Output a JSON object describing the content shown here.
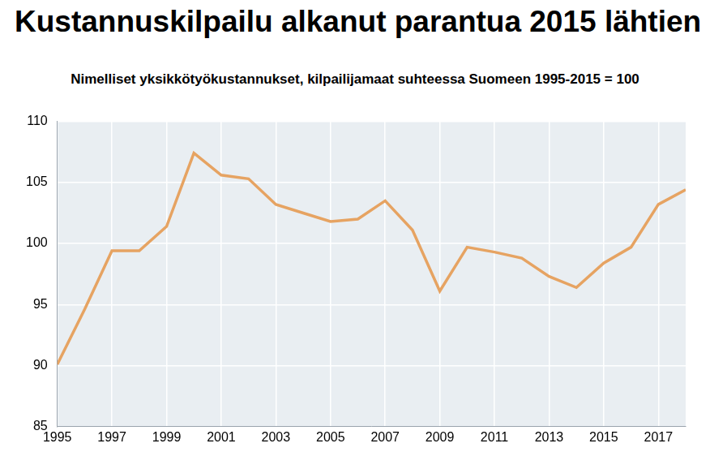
{
  "chart_data": {
    "type": "line",
    "title": "Kustannuskilpailu alkanut parantua 2015 lähtien",
    "subtitle": "Nimelliset yksikkötyökustannukset, kilpailijamaat suhteessa Suomeen 1995-2015 = 100",
    "x": [
      1995,
      1996,
      1997,
      1998,
      1999,
      2000,
      2001,
      2002,
      2003,
      2004,
      2005,
      2006,
      2007,
      2008,
      2009,
      2010,
      2011,
      2012,
      2013,
      2014,
      2015,
      2016,
      2017,
      2018
    ],
    "values": [
      90.1,
      94.6,
      99.4,
      99.4,
      101.4,
      107.4,
      105.6,
      105.3,
      103.2,
      102.5,
      101.8,
      102.0,
      103.5,
      101.1,
      96.1,
      99.7,
      99.3,
      98.8,
      97.3,
      96.4,
      98.4,
      99.7,
      103.2,
      104.4
    ],
    "color": "#e6a362",
    "xlim": [
      1995,
      2018
    ],
    "xticks": [
      1995,
      1997,
      1999,
      2001,
      2003,
      2005,
      2007,
      2009,
      2011,
      2013,
      2015,
      2017
    ],
    "ylim": [
      85,
      110
    ],
    "yticks": [
      85,
      90,
      95,
      100,
      105,
      110
    ],
    "grid": true,
    "marker": "none"
  }
}
